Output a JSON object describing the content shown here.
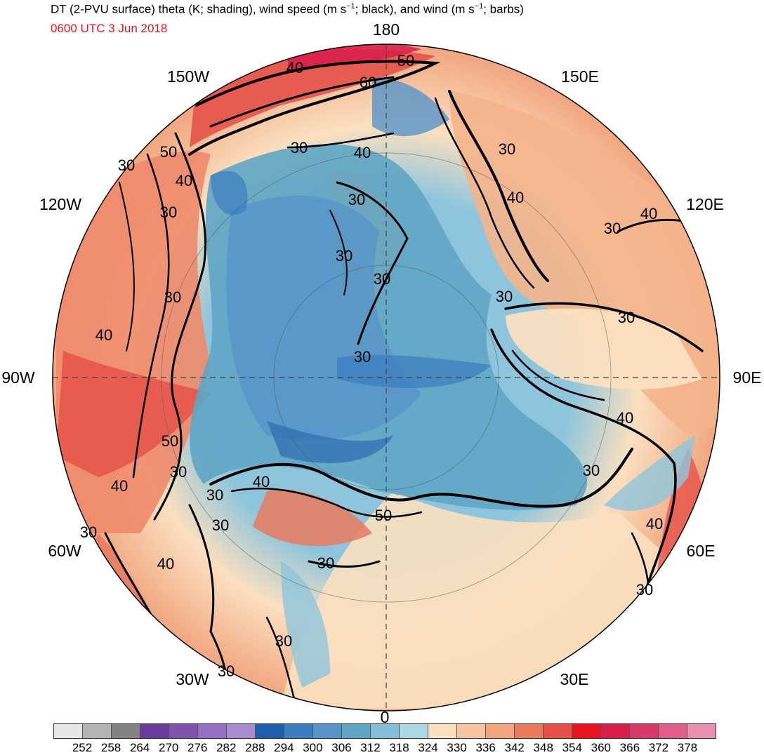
{
  "title": {
    "prefix": "DT (2-PVU surface) theta (K; shading), wind speed (m s",
    "sup1": "−1",
    "middle": "; black), and wind (m s",
    "sup2": "−1",
    "suffix": "; barbs)"
  },
  "subtitle": "0600 UTC 3 Jun 2018",
  "map": {
    "projection": "north polar stereographic",
    "longitude_labels": {
      "top": "180",
      "upper_left": "150W",
      "upper_right": "150E",
      "left_upper": "120W",
      "right_upper": "120E",
      "left": "90W",
      "right": "90E",
      "left_lower": "60W",
      "right_lower": "60E",
      "lower_left": "30W",
      "lower_right": "30E",
      "bottom": "0"
    },
    "contour_labels": [
      "40",
      "50",
      "60",
      "30",
      "40",
      "50",
      "30",
      "40",
      "30",
      "40",
      "30",
      "30",
      "30",
      "30",
      "30",
      "30",
      "30",
      "30",
      "30",
      "40",
      "30",
      "40",
      "40",
      "50",
      "40",
      "30",
      "30",
      "40",
      "50",
      "30",
      "30",
      "40",
      "30",
      "30",
      "30",
      "40",
      "30"
    ],
    "colors": {
      "cold": "#2c6cb4",
      "mid": "#8ec5dc",
      "warm": "#f4b48c",
      "hot": "#e8141e",
      "ocean_fill": "#6ea9cf"
    }
  },
  "colorbar": {
    "colors": [
      "#e6e6e6",
      "#b4b4b4",
      "#828282",
      "#6a3d9a",
      "#7f52ab",
      "#9470be",
      "#a98bd0",
      "#1f5fab",
      "#3b7dc0",
      "#5693c8",
      "#5fa5c4",
      "#86bdd6",
      "#acd8e6",
      "#fbe0c0",
      "#f6c4a0",
      "#f1a47e",
      "#e87a5e",
      "#e6524a",
      "#e8141e",
      "#d81c4c",
      "#d63a68",
      "#de5e88",
      "#e890ae"
    ],
    "ticks": [
      "252",
      "258",
      "264",
      "270",
      "276",
      "282",
      "288",
      "294",
      "300",
      "306",
      "312",
      "318",
      "324",
      "330",
      "336",
      "342",
      "348",
      "354",
      "360",
      "366",
      "372",
      "378"
    ]
  }
}
